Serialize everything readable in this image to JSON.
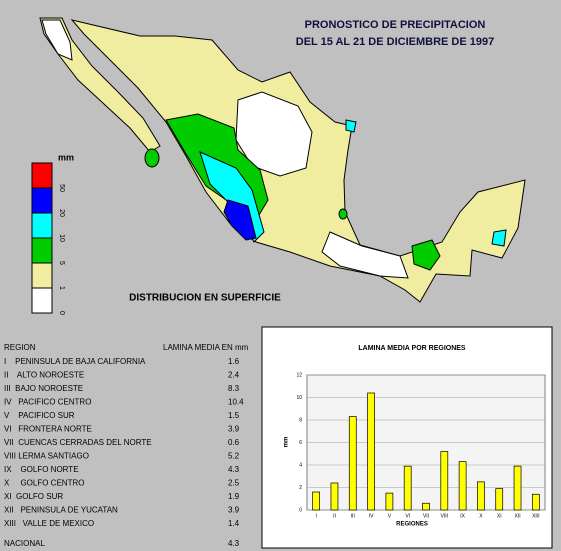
{
  "header": {
    "title": "PRONOSTICO DE PRECIPITACION",
    "subtitle": "DEL 15 AL 21 DE DICIEMBRE DE 1997"
  },
  "legend": {
    "unit": "mm",
    "levels": [
      {
        "value": 50,
        "color": "#ff0000"
      },
      {
        "value": 20,
        "color": "#0000ff"
      },
      {
        "value": 10,
        "color": "#00ffff"
      },
      {
        "value": 5,
        "color": "#00cc00"
      },
      {
        "value": 1,
        "color": "#f0eca0"
      },
      {
        "value": 0,
        "color": "#ffffff"
      }
    ]
  },
  "map": {
    "caption": "DISTRIBUCION EN SUPERFICIE"
  },
  "table": {
    "columns": [
      "REGION",
      "LAMINA MEDIA EN mm"
    ],
    "rows": [
      [
        "I    PENINSULA DE BAJA CALIFORNIA",
        1.6
      ],
      [
        "II    ALTO NOROESTE",
        2.4
      ],
      [
        "III  BAJO NOROESTE",
        8.3
      ],
      [
        "IV   PACIFICO CENTRO",
        10.4
      ],
      [
        "V    PACIFICO SUR",
        1.5
      ],
      [
        "VI   FRONTERA NORTE",
        3.9
      ],
      [
        "VII  CUENCAS CERRADAS DEL NORTE",
        0.6
      ],
      [
        "VIII LERMA SANTIAGO",
        5.2
      ],
      [
        "IX    GOLFO NORTE",
        4.3
      ],
      [
        "X     GOLFO CENTRO",
        2.5
      ],
      [
        "XI  GOLFO SUR",
        1.9
      ],
      [
        "XII   PENINSULA DE YUCATAN",
        3.9
      ],
      [
        "XIII   VALLE DE MEXICO",
        1.4
      ]
    ],
    "total": [
      "NACIONAL",
      4.3
    ]
  },
  "chart_data": {
    "type": "bar",
    "title": "LAMINA MEDIA POR REGIONES",
    "x_label": "REGIONES",
    "y_label": "mm",
    "categories": [
      "I",
      "II",
      "III",
      "IV",
      "V",
      "VI",
      "VII",
      "VIII",
      "IX",
      "X",
      "XI",
      "XII",
      "XIII"
    ],
    "values": [
      1.6,
      2.4,
      8.3,
      10.4,
      1.5,
      3.9,
      0.6,
      5.2,
      4.3,
      2.5,
      1.9,
      3.9,
      1.4
    ],
    "color": "#ffff00",
    "ylim": [
      0,
      12
    ],
    "yticks": [
      0,
      2,
      4,
      6,
      8,
      10,
      12
    ],
    "grid": true
  }
}
